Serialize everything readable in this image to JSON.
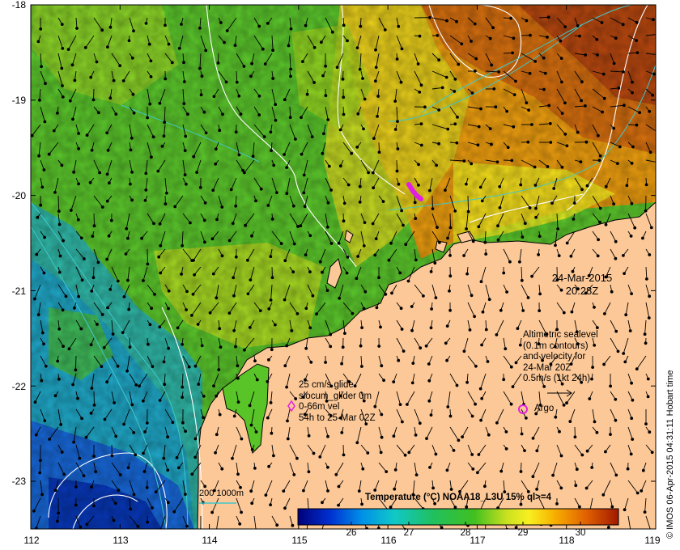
{
  "map": {
    "x_ticks": [
      "112",
      "113",
      "114",
      "115",
      "116",
      "117",
      "118",
      "119"
    ],
    "y_ticks": [
      "-18",
      "-19",
      "-20",
      "-21",
      "-22",
      "-23"
    ],
    "lon_range": [
      112,
      119
    ],
    "lat_range": [
      -23.5,
      -18
    ]
  },
  "date_label": {
    "line1": "24-Mar-2015",
    "line2": "20:28Z"
  },
  "altimetry_legend": {
    "lines": [
      "Altimetric sealevel",
      "(0.1m contours)",
      "and velocity for",
      "24-Mar 20Z",
      "0.5m/s (1kt 24h)"
    ]
  },
  "argo_label": "Argo",
  "glider_legend": {
    "lines": [
      "25 cm/s glide",
      "slocum_glider 0m",
      "0-66m vel",
      "54h to 25-Mar 02Z"
    ]
  },
  "depth_legend": "200  1000m",
  "colorbar": {
    "title_bold": "Temperature (°C)",
    "title_rest": " NOAA18_L3U 15% ql>=4",
    "ticks": [
      "26",
      "27",
      "28",
      "29",
      "30"
    ],
    "range": [
      25,
      30.6
    ]
  },
  "copyright": "© IMOS 06-Apr-2015 04:31:11 Hobart time",
  "colors": {
    "land": "#fcc898",
    "argo": "#e020e0",
    "glider": "#e020e0",
    "contour": "#ffffff",
    "isobath": "#40c8c8"
  }
}
